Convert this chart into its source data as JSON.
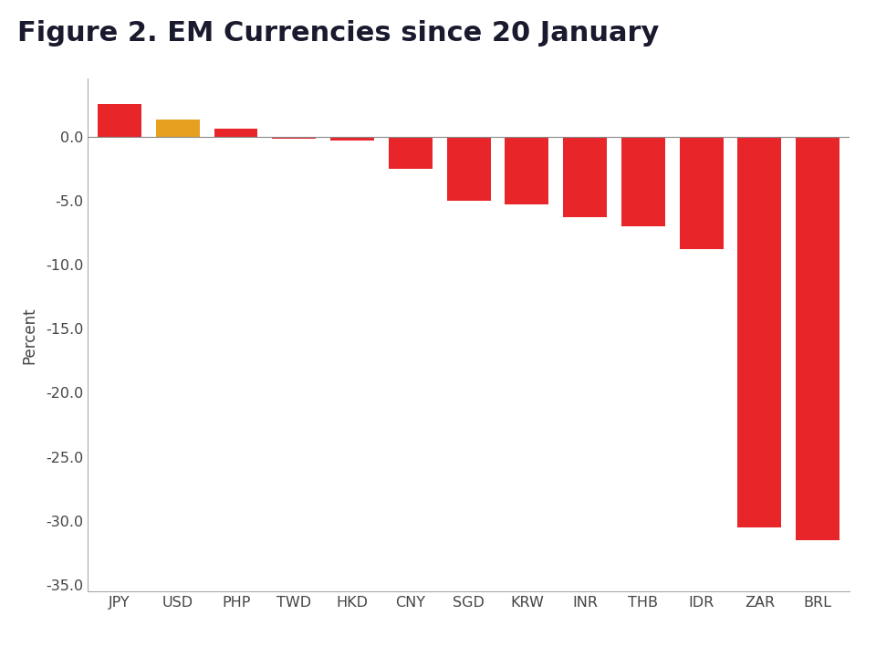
{
  "title": "Figure 2. EM Currencies since 20 January",
  "categories": [
    "JPY",
    "USD",
    "PHP",
    "TWD",
    "HKD",
    "CNY",
    "SGD",
    "KRW",
    "INR",
    "THB",
    "IDR",
    "ZAR",
    "BRL"
  ],
  "values": [
    2.5,
    1.3,
    0.6,
    -0.2,
    -0.3,
    -2.5,
    -5.0,
    -5.3,
    -6.3,
    -7.0,
    -8.8,
    -30.5,
    -31.5
  ],
  "bar_colors": [
    "#E8262A",
    "#E8A020",
    "#E8262A",
    "#E8262A",
    "#E8262A",
    "#E8262A",
    "#E8262A",
    "#E8262A",
    "#E8262A",
    "#E8262A",
    "#E8262A",
    "#E8262A",
    "#E8262A"
  ],
  "ylabel": "Percent",
  "ylim": [
    -35.5,
    4.5
  ],
  "yticks": [
    0.0,
    -5.0,
    -10.0,
    -15.0,
    -20.0,
    -25.0,
    -30.0,
    -35.0
  ],
  "ytick_labels": [
    "0.0",
    "-5.0",
    "-10.0",
    "-15.0",
    "-20.0",
    "-25.0",
    "-30.0",
    "-35.0"
  ],
  "background_color": "#ffffff",
  "title_color": "#1a1a2e",
  "title_fontsize": 22,
  "axis_color": "#444444",
  "spine_color": "#aaaaaa",
  "bar_width": 0.75
}
